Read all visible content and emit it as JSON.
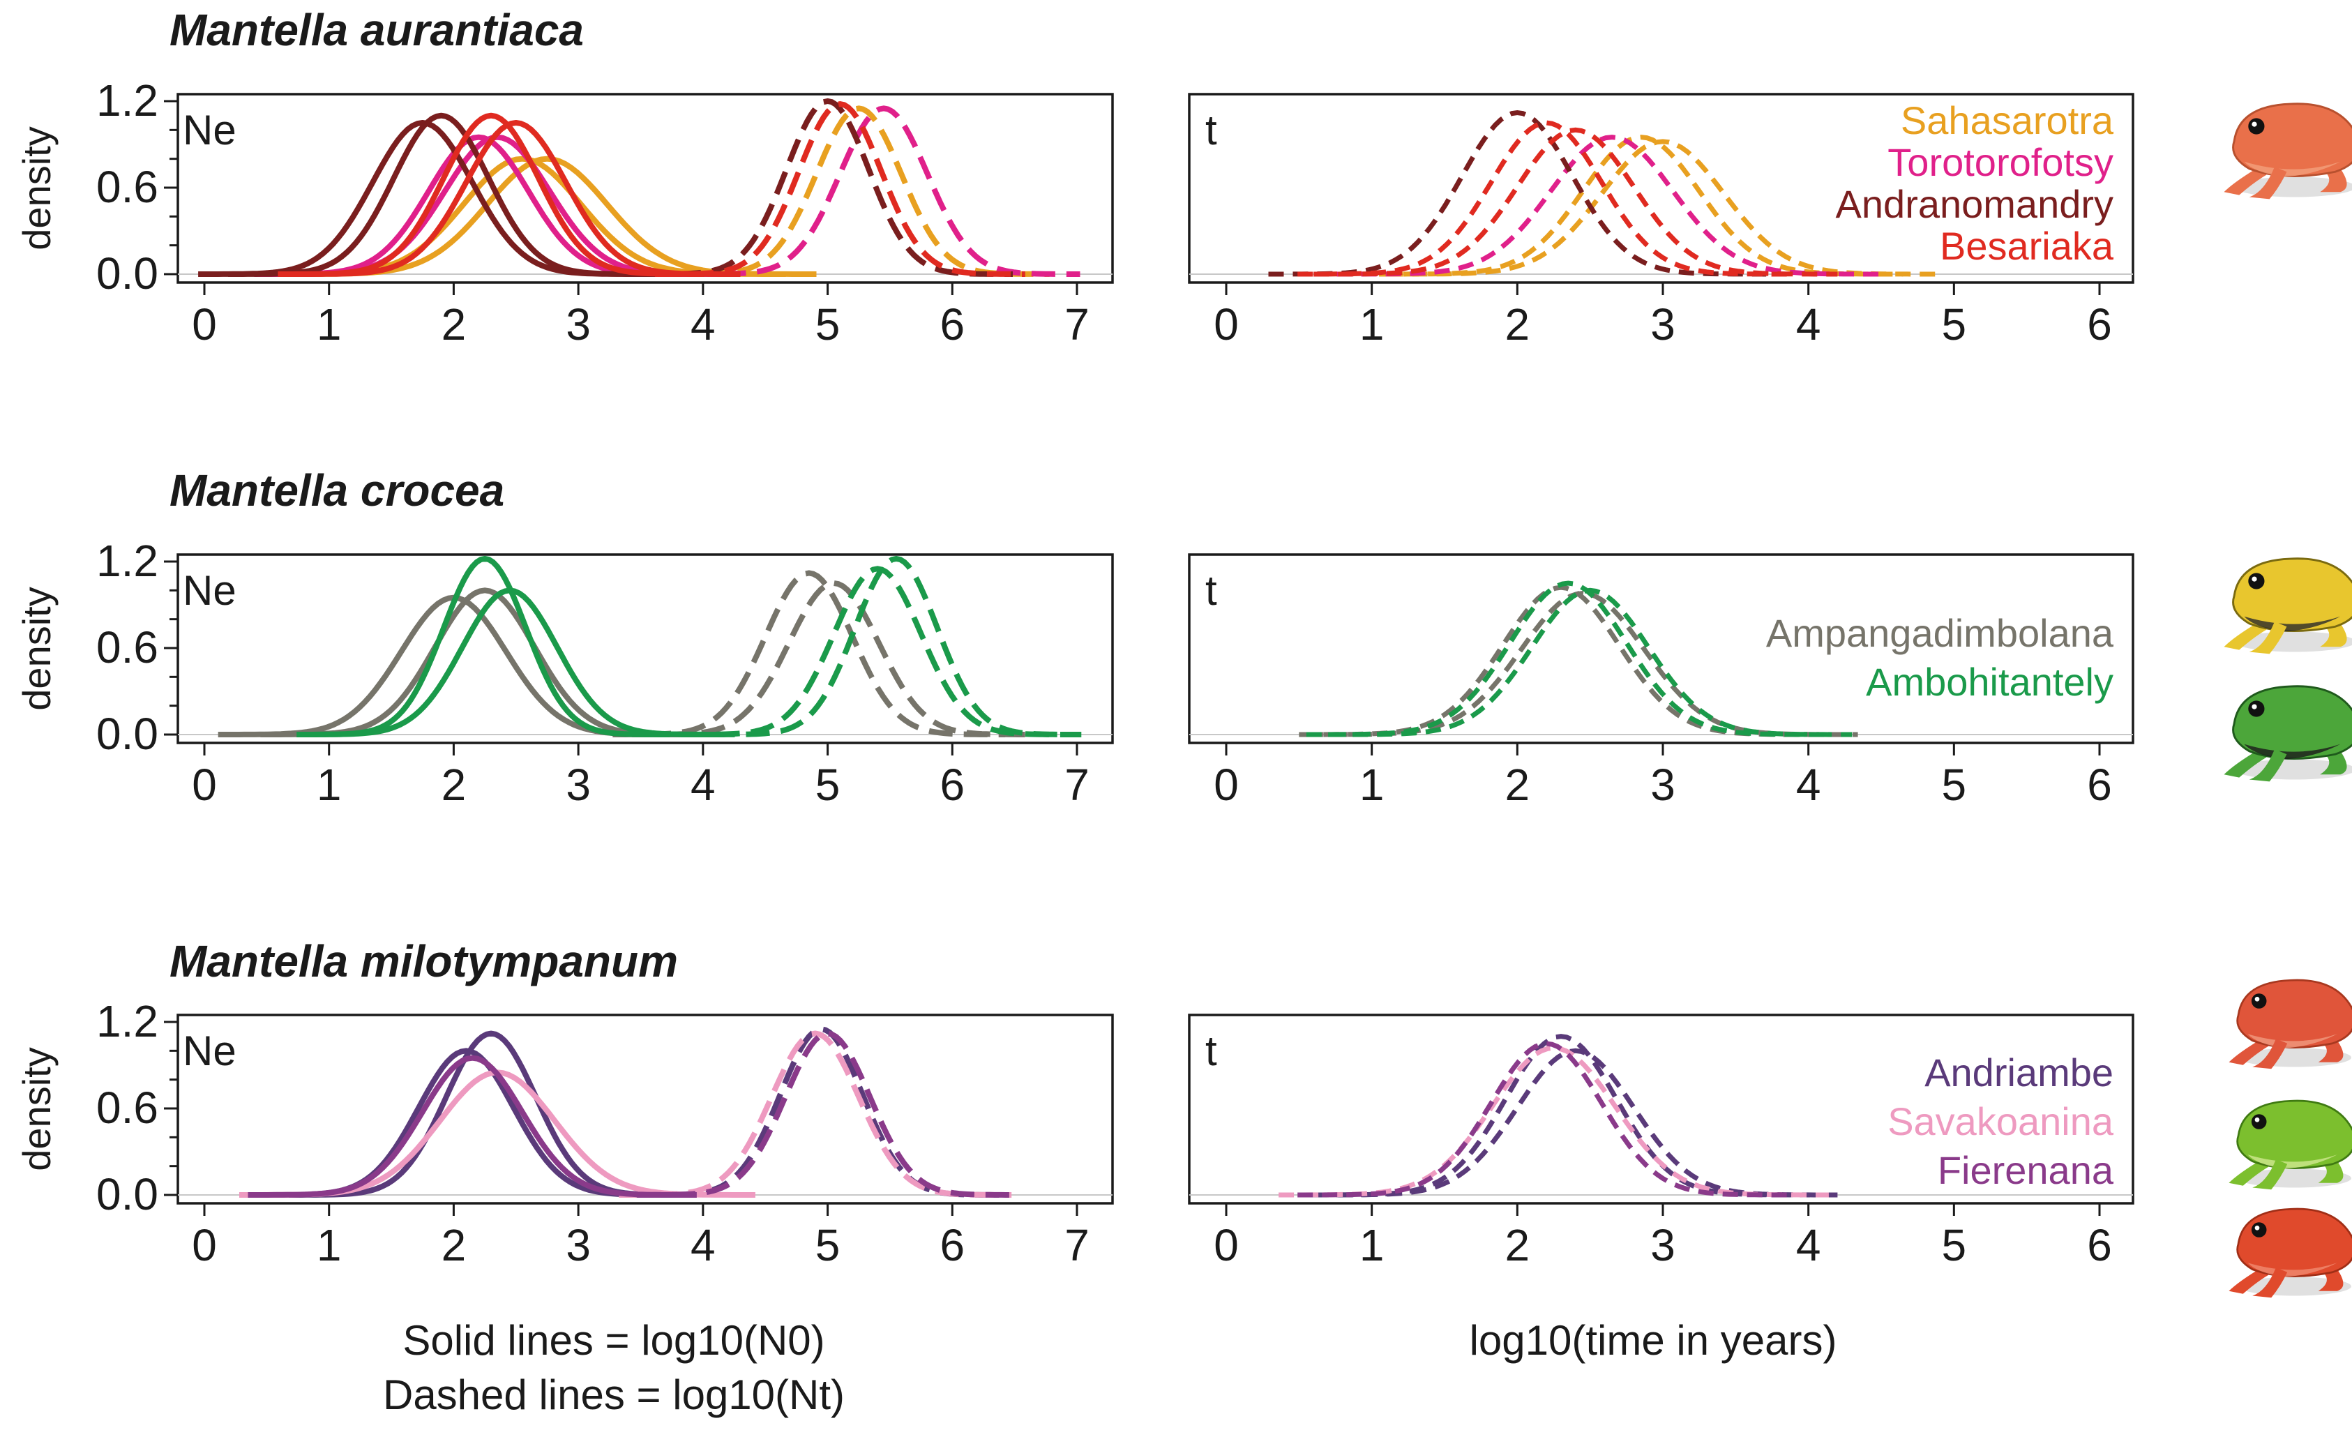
{
  "figure": {
    "caption_left_line1": "Solid lines = log10(N0)",
    "caption_left_line2": "Dashed lines = log10(Nt)",
    "caption_right": "log10(time in years)"
  },
  "chart_data": [
    {
      "type": "line",
      "species": "Mantella aurantiaca",
      "ne_panel": {
        "label": "Ne",
        "ylabel": "density",
        "xlim": [
          0,
          7
        ],
        "ylim": [
          0,
          1.2
        ],
        "xticks": [
          0,
          1,
          2,
          3,
          4,
          5,
          6,
          7
        ],
        "yticks": [
          "0.0",
          "0.6",
          "1.2"
        ]
      },
      "t_panel": {
        "label": "t",
        "xlim": [
          0,
          6
        ],
        "xticks": [
          0,
          1,
          2,
          3,
          4,
          5,
          6
        ]
      },
      "populations": [
        {
          "name": "Sahasarotra",
          "color": "#E8A020",
          "n0_curves": [
            {
              "mean": 2.55,
              "sd": 0.47,
              "peak": 0.8
            },
            {
              "mean": 2.75,
              "sd": 0.48,
              "peak": 0.8
            }
          ],
          "nt_curves": [
            {
              "mean": 5.25,
              "sd": 0.34,
              "peak": 1.15
            }
          ],
          "t_curves": [
            {
              "mean": 2.85,
              "sd": 0.4,
              "peak": 0.95
            },
            {
              "mean": 3.0,
              "sd": 0.42,
              "peak": 0.92
            }
          ]
        },
        {
          "name": "Torotorofotsy",
          "color": "#E0208A",
          "n0_curves": [
            {
              "mean": 2.2,
              "sd": 0.4,
              "peak": 0.95
            },
            {
              "mean": 2.35,
              "sd": 0.42,
              "peak": 0.95
            }
          ],
          "nt_curves": [
            {
              "mean": 5.45,
              "sd": 0.35,
              "peak": 1.15
            }
          ],
          "t_curves": [
            {
              "mean": 2.65,
              "sd": 0.42,
              "peak": 0.95
            }
          ]
        },
        {
          "name": "Andranomandry",
          "color": "#7A1E1E",
          "n0_curves": [
            {
              "mean": 1.75,
              "sd": 0.4,
              "peak": 1.05
            },
            {
              "mean": 1.9,
              "sd": 0.38,
              "peak": 1.1
            }
          ],
          "nt_curves": [
            {
              "mean": 5.0,
              "sd": 0.33,
              "peak": 1.2
            }
          ],
          "t_curves": [
            {
              "mean": 2.0,
              "sd": 0.38,
              "peak": 1.12
            }
          ]
        },
        {
          "name": "Besariaka",
          "color": "#E02A20",
          "n0_curves": [
            {
              "mean": 2.3,
              "sd": 0.38,
              "peak": 1.1
            },
            {
              "mean": 2.5,
              "sd": 0.4,
              "peak": 1.05
            }
          ],
          "nt_curves": [
            {
              "mean": 5.1,
              "sd": 0.33,
              "peak": 1.18
            }
          ],
          "t_curves": [
            {
              "mean": 2.2,
              "sd": 0.38,
              "peak": 1.05
            },
            {
              "mean": 2.4,
              "sd": 0.4,
              "peak": 1.0
            }
          ]
        }
      ]
    },
    {
      "type": "line",
      "species": "Mantella crocea",
      "ne_panel": {
        "label": "Ne",
        "ylabel": "density",
        "xlim": [
          0,
          7
        ],
        "ylim": [
          0,
          1.2
        ],
        "xticks": [
          0,
          1,
          2,
          3,
          4,
          5,
          6,
          7
        ],
        "yticks": [
          "0.0",
          "0.6",
          "1.2"
        ]
      },
      "t_panel": {
        "label": "t",
        "xlim": [
          0,
          6
        ],
        "xticks": [
          0,
          1,
          2,
          3,
          4,
          5,
          6
        ]
      },
      "populations": [
        {
          "name": "Ampangadimbolana",
          "color": "#76746A",
          "n0_curves": [
            {
              "mean": 2.0,
              "sd": 0.42,
              "peak": 0.95
            },
            {
              "mean": 2.25,
              "sd": 0.4,
              "peak": 1.0
            }
          ],
          "nt_curves": [
            {
              "mean": 4.85,
              "sd": 0.35,
              "peak": 1.12
            },
            {
              "mean": 5.05,
              "sd": 0.36,
              "peak": 1.05
            }
          ],
          "t_curves": [
            {
              "mean": 2.3,
              "sd": 0.4,
              "peak": 1.02
            },
            {
              "mean": 2.45,
              "sd": 0.42,
              "peak": 0.98
            }
          ]
        },
        {
          "name": "Ambohitantely",
          "color": "#1A9A4A",
          "n0_curves": [
            {
              "mean": 2.25,
              "sd": 0.33,
              "peak": 1.22
            },
            {
              "mean": 2.45,
              "sd": 0.38,
              "peak": 1.0
            }
          ],
          "nt_curves": [
            {
              "mean": 5.55,
              "sd": 0.33,
              "peak": 1.22
            },
            {
              "mean": 5.4,
              "sd": 0.35,
              "peak": 1.15
            }
          ],
          "t_curves": [
            {
              "mean": 2.35,
              "sd": 0.4,
              "peak": 1.05
            },
            {
              "mean": 2.5,
              "sd": 0.4,
              "peak": 1.0
            }
          ]
        }
      ]
    },
    {
      "type": "line",
      "species": "Mantella milotympanum",
      "ne_panel": {
        "label": "Ne",
        "ylabel": "density",
        "xlim": [
          0,
          7
        ],
        "ylim": [
          0,
          1.2
        ],
        "xticks": [
          0,
          1,
          2,
          3,
          4,
          5,
          6,
          7
        ],
        "yticks": [
          "0.0",
          "0.6",
          "1.2"
        ]
      },
      "t_panel": {
        "label": "t",
        "xlim": [
          0,
          6
        ],
        "xticks": [
          0,
          1,
          2,
          3,
          4,
          5,
          6
        ]
      },
      "populations": [
        {
          "name": "Andriambe",
          "color": "#5A3A7A",
          "n0_curves": [
            {
              "mean": 2.1,
              "sd": 0.38,
              "peak": 1.0
            },
            {
              "mean": 2.3,
              "sd": 0.36,
              "peak": 1.12
            }
          ],
          "nt_curves": [
            {
              "mean": 4.95,
              "sd": 0.33,
              "peak": 1.15
            }
          ],
          "t_curves": [
            {
              "mean": 2.3,
              "sd": 0.38,
              "peak": 1.1
            },
            {
              "mean": 2.4,
              "sd": 0.4,
              "peak": 1.0
            }
          ]
        },
        {
          "name": "Savakoanina",
          "color": "#EE9AC0",
          "n0_curves": [
            {
              "mean": 2.35,
              "sd": 0.46,
              "peak": 0.85
            }
          ],
          "nt_curves": [
            {
              "mean": 4.9,
              "sd": 0.35,
              "peak": 1.12
            }
          ],
          "t_curves": [
            {
              "mean": 2.25,
              "sd": 0.42,
              "peak": 1.02
            }
          ]
        },
        {
          "name": "Fierenana",
          "color": "#8A3A8A",
          "n0_curves": [
            {
              "mean": 2.15,
              "sd": 0.4,
              "peak": 0.95
            }
          ],
          "nt_curves": [
            {
              "mean": 5.0,
              "sd": 0.34,
              "peak": 1.12
            }
          ],
          "t_curves": [
            {
              "mean": 2.2,
              "sd": 0.38,
              "peak": 1.05
            }
          ]
        }
      ]
    }
  ]
}
